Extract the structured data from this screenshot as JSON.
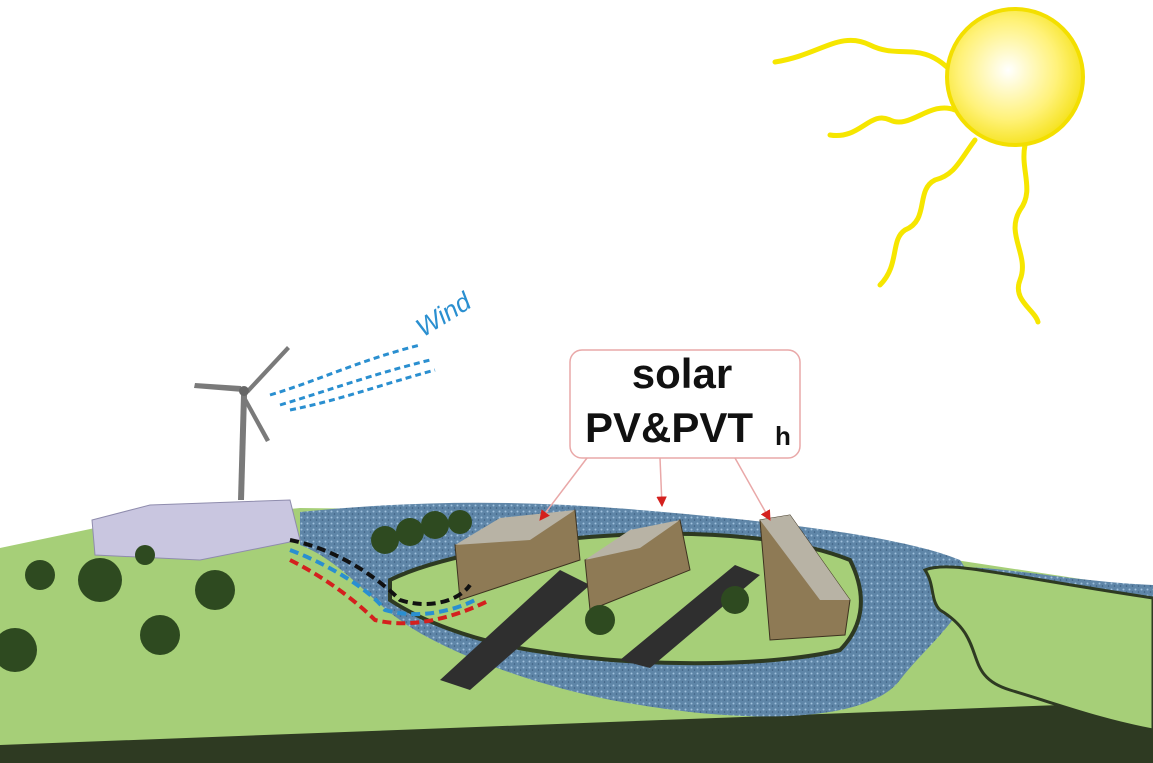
{
  "labels": {
    "wind": "Wind",
    "callout": {
      "line1": "solar",
      "line2": "PV&PVT",
      "subscript": "h"
    }
  }
}
